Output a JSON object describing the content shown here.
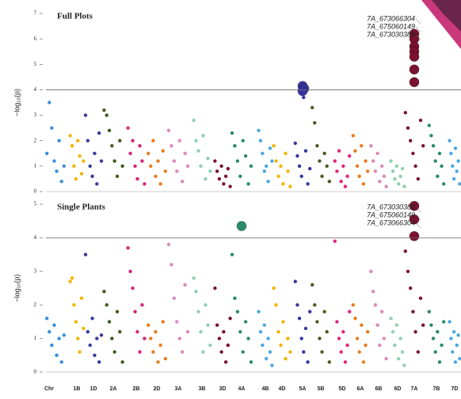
{
  "chart_data": [
    {
      "type": "manhattan",
      "title": "Full Plots",
      "y_label": "−log₁₀(p)",
      "ylim": [
        0,
        7
      ],
      "yticks": [
        0,
        1,
        2,
        3,
        4,
        5,
        6,
        7
      ],
      "threshold": 4,
      "colors": [
        "#3a8fd8",
        "#f2b400",
        "#3b3a9a",
        "#3f5a1f",
        "#d6257a",
        "#e87c1e",
        "#d98ab8",
        "#8fd0b0",
        "#7a1230",
        "#2a8a6a",
        "#4aa8e0",
        "#f2b400",
        "#3535a0",
        "#4a5a20",
        "#e0267a",
        "#e87c1e",
        "#d98ab8",
        "#8fd0b0",
        "#7a1230",
        "#2a8a6a",
        "#4aa8e0"
      ],
      "values": [
        [
          1.5,
          3.5,
          2.5,
          1.2,
          0.8,
          2.0,
          0.4,
          1.0
        ],
        [
          2.2,
          1.8,
          1.0,
          0.5,
          2.0,
          1.4,
          0.7,
          1.2
        ],
        [
          3.0,
          2.0,
          1.0,
          0.6,
          1.5,
          0.3,
          2.3,
          1.2
        ],
        [
          3.2,
          3.0,
          2.4,
          1.8,
          1.2,
          0.6,
          2.0,
          1.0
        ],
        [
          2.5,
          1.5,
          2.0,
          1.0,
          0.5,
          1.8,
          1.2,
          0.3
        ],
        [
          1.5,
          1.0,
          2.0,
          0.6,
          1.2,
          0.3,
          1.6,
          0.8
        ],
        [
          2.4,
          1.8,
          1.2,
          0.8,
          2.0,
          0.4,
          1.5,
          1.0
        ],
        [
          2.8,
          2.0,
          1.6,
          1.0,
          2.2,
          0.5,
          1.3,
          0.8
        ],
        [
          1.2,
          0.8,
          0.5,
          1.0,
          0.3,
          0.6,
          0.9,
          0.2
        ],
        [
          2.3,
          1.8,
          1.2,
          0.6,
          2.0,
          1.4,
          0.3,
          1.0
        ],
        [
          2.4,
          2.0,
          1.5,
          0.8,
          1.0,
          0.4,
          1.7,
          1.2
        ],
        [
          1.8,
          1.2,
          0.6,
          1.0,
          0.3,
          1.5,
          0.8,
          0.2
        ],
        [
          1.9,
          1.4,
          1.0,
          0.6,
          3.7,
          1.6,
          0.3,
          0.9
        ],
        [
          3.3,
          2.7,
          1.8,
          1.2,
          0.6,
          1.5,
          1.0,
          0.4
        ],
        [
          1.2,
          0.8,
          1.6,
          0.4,
          1.0,
          0.2,
          0.6,
          1.4
        ],
        [
          2.2,
          1.6,
          1.0,
          0.6,
          1.8,
          0.3,
          1.2,
          0.8
        ],
        [
          1.8,
          1.2,
          0.8,
          1.5,
          0.4,
          1.0,
          0.6,
          0.2
        ],
        [
          1.2,
          0.8,
          0.5,
          1.0,
          0.3,
          0.6,
          0.9,
          0.2
        ],
        [
          3.1,
          2.5,
          2.0,
          1.5,
          1.0,
          0.5,
          2.8,
          1.8
        ],
        [
          2.6,
          2.2,
          1.8,
          1.2,
          0.6,
          1.5,
          1.0,
          0.3
        ],
        [
          2.0,
          1.5,
          1.0,
          0.5,
          1.7,
          0.8,
          1.2,
          0.3
        ]
      ],
      "highlight_values": [
        [],
        [],
        [],
        [],
        [],
        [],
        [],
        [],
        [],
        [],
        [],
        [],
        [
          4.15,
          4.05,
          3.95
        ],
        [],
        [],
        [],
        [],
        [],
        [
          6.2,
          6.0,
          5.7,
          5.5,
          5.3,
          4.8,
          4.3
        ],
        [],
        []
      ],
      "annotations": [
        "7A_673066304",
        "7A_675060149",
        "7A_673030388"
      ]
    },
    {
      "type": "manhattan",
      "title": "Single Plants",
      "y_label": "−log₁₀(p)",
      "x_label": "Chr",
      "ylim": [
        0,
        5
      ],
      "yticks": [
        0,
        1,
        2,
        3,
        4,
        5
      ],
      "threshold": 4,
      "categories": [
        null,
        "1B",
        "1D",
        "2A",
        "2B",
        "2D",
        "3A",
        "3B",
        "3D",
        "4A",
        "4B",
        "4D",
        "5A",
        "5B",
        "5D",
        "6A",
        "6B",
        "6D",
        "7A",
        "7B",
        "7D"
      ],
      "colors": [
        "#3a8fd8",
        "#f2b400",
        "#3b3a9a",
        "#3f5a1f",
        "#d6257a",
        "#e87c1e",
        "#d98ab8",
        "#8fd0b0",
        "#7a1230",
        "#2a8a6a",
        "#4aa8e0",
        "#f2b400",
        "#3535a0",
        "#4a5a20",
        "#e0267a",
        "#e87c1e",
        "#d98ab8",
        "#8fd0b0",
        "#7a1230",
        "#2a8a6a",
        "#4aa8e0"
      ],
      "values": [
        [
          1.6,
          1.2,
          0.8,
          1.4,
          0.5,
          1.0,
          0.3,
          1.1
        ],
        [
          2.7,
          2.8,
          2.0,
          1.5,
          1.0,
          0.6,
          2.2,
          1.3
        ],
        [
          3.5,
          1.2,
          0.8,
          1.6,
          0.5,
          1.0,
          0.3,
          1.1
        ],
        [
          2.4,
          2.0,
          1.5,
          1.0,
          0.6,
          1.8,
          1.2,
          0.3
        ],
        [
          3.7,
          3.0,
          2.5,
          1.8,
          1.2,
          0.6,
          2.0,
          1.0
        ],
        [
          1.4,
          1.0,
          0.6,
          1.2,
          0.3,
          0.8,
          1.5,
          0.4
        ],
        [
          3.8,
          3.2,
          2.2,
          1.5,
          1.0,
          0.6,
          2.6,
          1.2
        ],
        [
          2.8,
          2.4,
          1.8,
          1.2,
          0.6,
          2.0,
          1.4,
          0.8
        ],
        [
          2.5,
          1.4,
          1.0,
          0.6,
          1.2,
          0.3,
          0.8,
          1.6
        ],
        [
          3.5,
          2.2,
          1.8,
          1.2,
          0.6,
          1.5,
          1.0,
          0.3
        ],
        [
          1.8,
          1.2,
          0.8,
          1.4,
          0.4,
          1.0,
          0.6,
          0.2
        ],
        [
          2.5,
          2.0,
          1.2,
          0.8,
          1.5,
          0.4,
          1.0,
          0.6
        ],
        [
          2.7,
          2.0,
          1.6,
          1.0,
          0.6,
          1.3,
          0.3,
          1.8
        ],
        [
          2.6,
          2.0,
          1.5,
          1.0,
          0.6,
          1.8,
          1.2,
          0.3
        ],
        [
          3.9,
          1.5,
          1.0,
          0.6,
          1.2,
          0.3,
          0.8,
          1.8
        ],
        [
          2.0,
          1.6,
          1.0,
          0.6,
          1.4,
          0.3,
          0.8,
          1.2
        ],
        [
          3.0,
          2.4,
          2.0,
          1.4,
          0.8,
          1.8,
          1.0,
          0.4
        ],
        [
          1.6,
          1.2,
          0.8,
          1.4,
          0.4,
          1.0,
          0.6,
          0.2
        ],
        [
          3.6,
          3.0,
          2.5,
          1.8,
          1.2,
          0.6,
          2.2,
          1.4
        ],
        [
          1.8,
          1.4,
          1.0,
          0.6,
          1.2,
          0.3,
          0.8,
          1.5
        ],
        [
          1.5,
          1.0,
          0.6,
          1.2,
          0.3,
          0.8,
          1.1,
          0.4
        ]
      ],
      "highlight_values": [
        [],
        [],
        [],
        [],
        [],
        [],
        [],
        [],
        [],
        [
          4.35
        ],
        [],
        [],
        [],
        [],
        [],
        [],
        [],
        [],
        [
          4.95,
          4.55,
          4.05
        ],
        [],
        []
      ],
      "annotations": [
        "7A_673030388",
        "7A_675060149",
        "7A_673066304"
      ]
    }
  ]
}
